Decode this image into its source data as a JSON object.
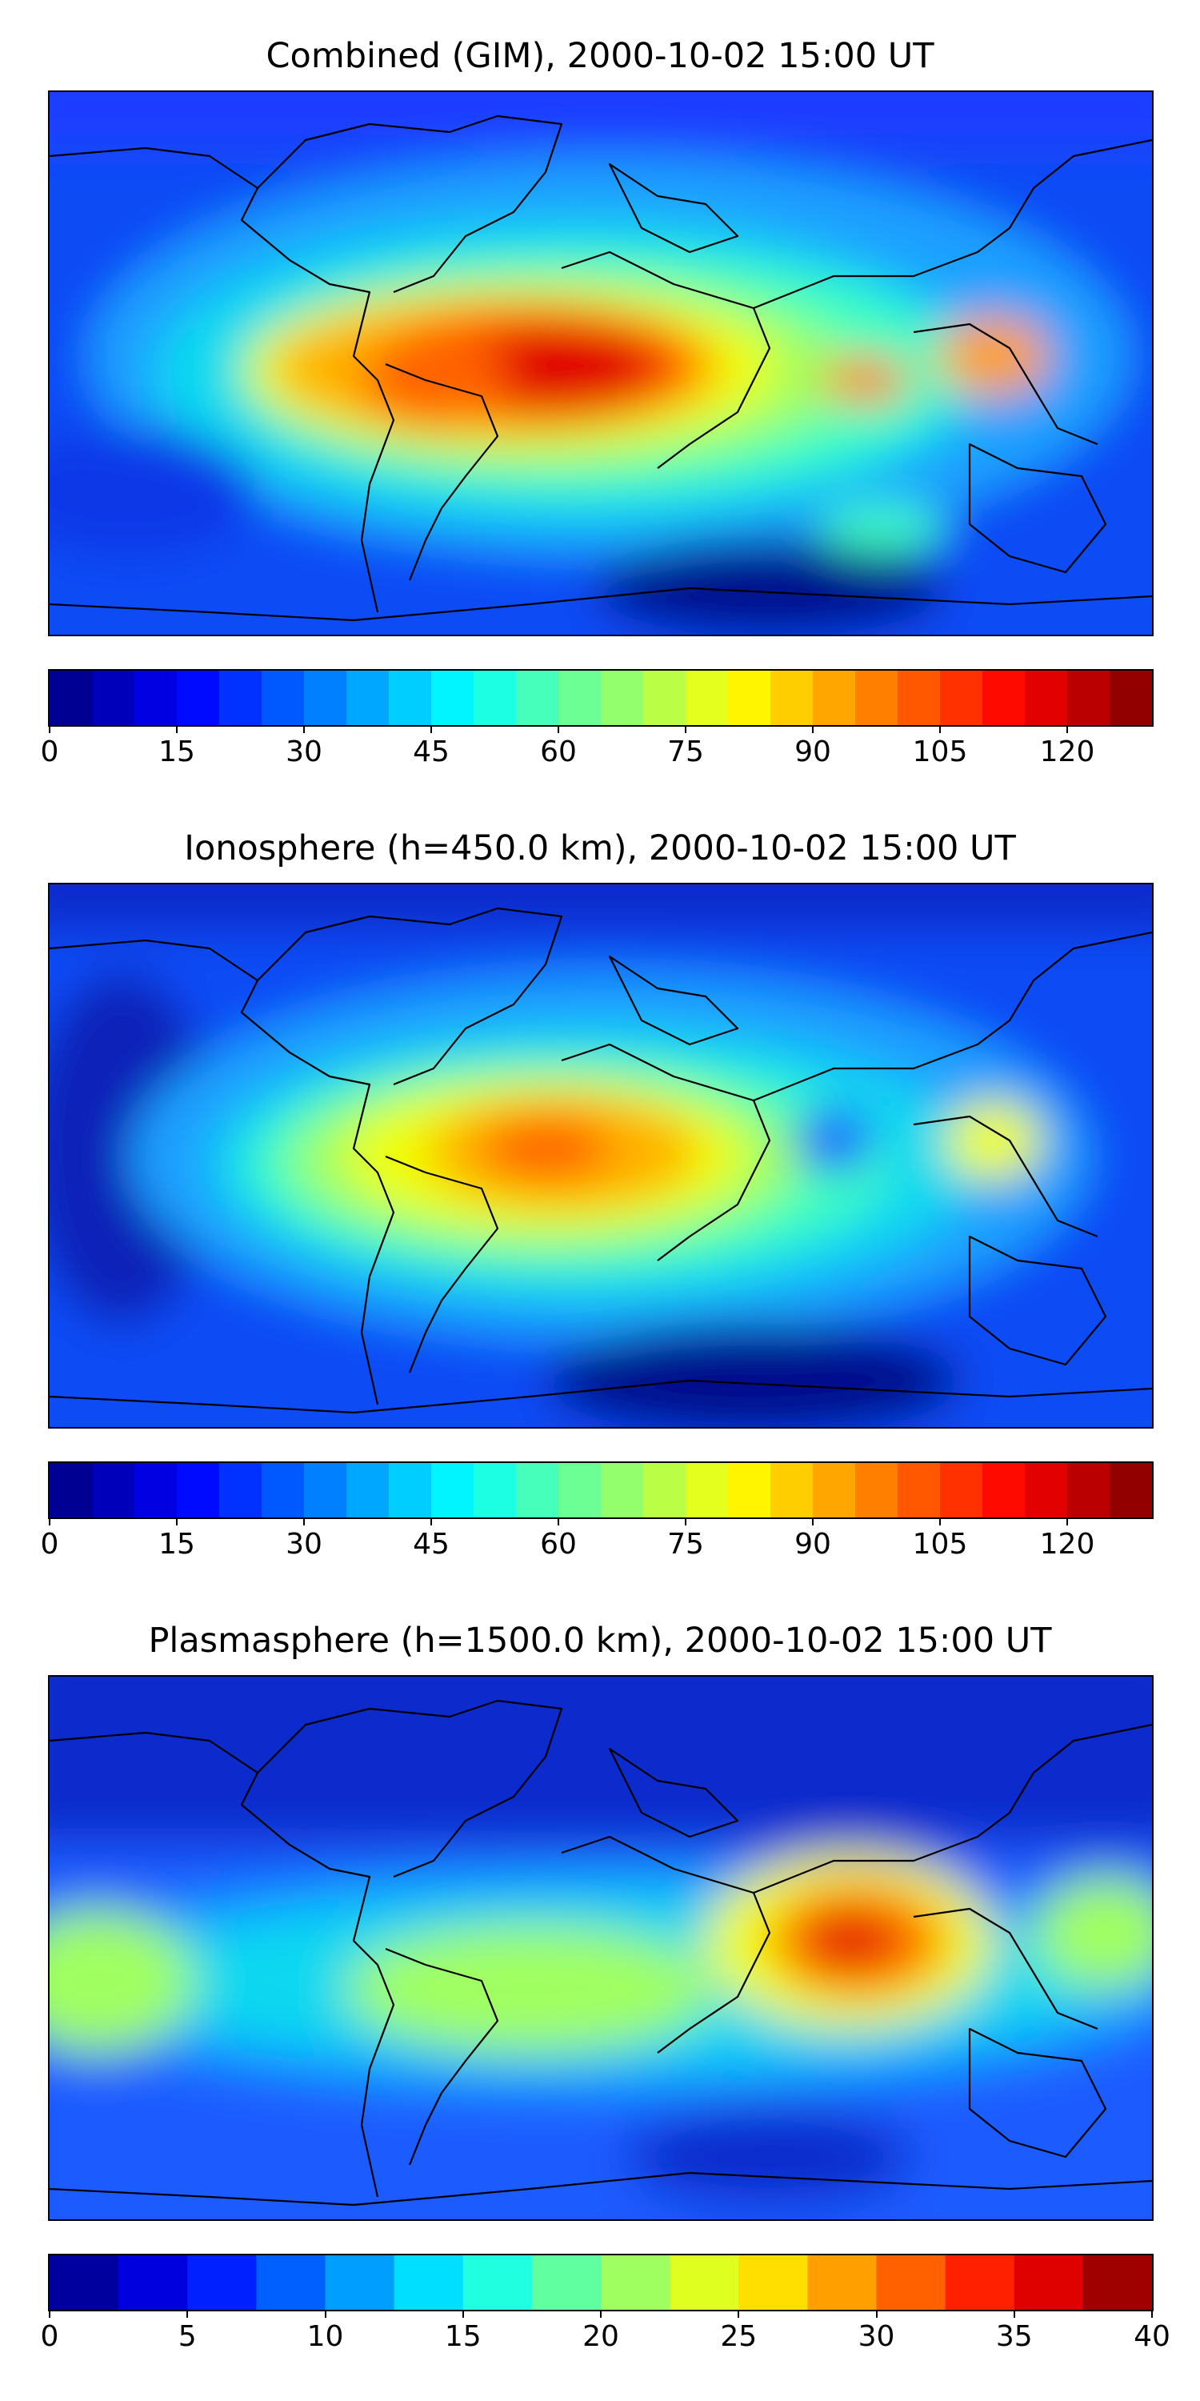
{
  "panels": [
    {
      "title": "Combined (GIM), 2000-10-02 15:00 UT",
      "colorbar": {
        "vmin": 0,
        "vmax": 130,
        "step": 5,
        "ticks": [
          "0",
          "15",
          "30",
          "45",
          "60",
          "75",
          "90",
          "105",
          "120"
        ]
      }
    },
    {
      "title": "Ionosphere  (h=450.0 km), 2000-10-02 15:00 UT",
      "colorbar": {
        "vmin": 0,
        "vmax": 130,
        "step": 5,
        "ticks": [
          "0",
          "15",
          "30",
          "45",
          "60",
          "75",
          "90",
          "105",
          "120"
        ]
      }
    },
    {
      "title": "Plasmasphere (h=1500.0 km), 2000-10-02 15:00 UT",
      "colorbar": {
        "vmin": 0,
        "vmax": 40,
        "step": 2.5,
        "ticks": [
          "0",
          "5",
          "10",
          "15",
          "20",
          "25",
          "30",
          "35",
          "40"
        ]
      }
    }
  ],
  "colormap": "jet"
}
